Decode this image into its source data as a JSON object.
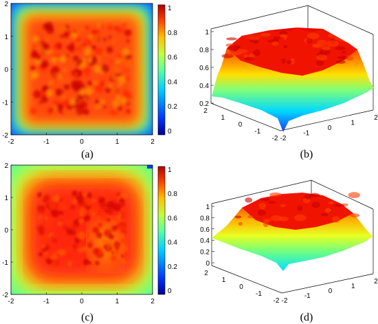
{
  "panels": [
    {
      "id": "a",
      "caption": "(a)",
      "type": "heatmap",
      "xticks": [
        "-2",
        "-1",
        "0",
        "1",
        "2"
      ],
      "yticks": [
        "2",
        "1",
        "0",
        "-1",
        "-2"
      ],
      "colorbar_ticks": [
        "1",
        "0.8",
        "0.6",
        "0.4",
        "0.2",
        "0"
      ]
    },
    {
      "id": "b",
      "caption": "(b)",
      "type": "surface",
      "zticks": [
        "1",
        "0.8",
        "0.6",
        "0.4",
        "0.2"
      ],
      "xticks": [
        "-2",
        "-1",
        "0",
        "1",
        "2"
      ],
      "yticks": [
        "2",
        "1",
        "0",
        "-1",
        "-2"
      ]
    },
    {
      "id": "c",
      "caption": "(c)",
      "type": "heatmap",
      "xticks": [
        "-2",
        "-1",
        "0",
        "1",
        "2"
      ],
      "yticks": [
        "2",
        "1",
        "0",
        "-1",
        "-2"
      ],
      "colorbar_ticks": [
        "1",
        "0.8",
        "0.6",
        "0.4",
        "0.2",
        "0"
      ]
    },
    {
      "id": "d",
      "caption": "(d)",
      "type": "surface",
      "zticks": [
        "1",
        "0.8",
        "0.6",
        "0.4",
        "0.2",
        "0"
      ],
      "xticks": [
        "-2",
        "-1",
        "0",
        "1",
        "2"
      ],
      "yticks": [
        "2",
        "1",
        "0",
        "-1",
        "-2"
      ]
    }
  ],
  "chart_data": [
    {
      "type": "heatmap",
      "panel": "a",
      "x_range": [
        -2,
        2
      ],
      "y_range": [
        -2,
        2
      ],
      "color_range": [
        0,
        1
      ],
      "colormap": [
        "#00008f",
        "#0040ff",
        "#00c0ff",
        "#40ffbf",
        "#bfff40",
        "#ffbf00",
        "#ff4000",
        "#bf0000"
      ],
      "description_values": {
        "interior_level": 0.9,
        "edge_level": 0.45,
        "corner_level": 0.2
      }
    },
    {
      "type": "surface",
      "panel": "b",
      "z_range": [
        0.2,
        1
      ],
      "x_range": [
        -2,
        2
      ],
      "y_range": [
        -2,
        2
      ],
      "description_values": {
        "plateau_level": 0.92,
        "edge_level": 0.5,
        "corner_min": 0.2
      }
    },
    {
      "type": "heatmap",
      "panel": "c",
      "x_range": [
        -2,
        2
      ],
      "y_range": [
        -2,
        2
      ],
      "color_range": [
        0,
        1
      ],
      "colormap": [
        "#00008f",
        "#0040ff",
        "#00c0ff",
        "#40ffbf",
        "#bfff40",
        "#ffbf00",
        "#ff4000",
        "#bf0000"
      ],
      "description_values": {
        "interior_level": 0.85,
        "edge_level": 0.55,
        "corner_level": 0.5
      }
    },
    {
      "type": "surface",
      "panel": "d",
      "z_range": [
        0,
        1
      ],
      "x_range": [
        -2,
        2
      ],
      "y_range": [
        -2,
        2
      ],
      "description_values": {
        "plateau_level": 0.88,
        "edge_level": 0.42,
        "corner_min": 0.3
      }
    }
  ]
}
